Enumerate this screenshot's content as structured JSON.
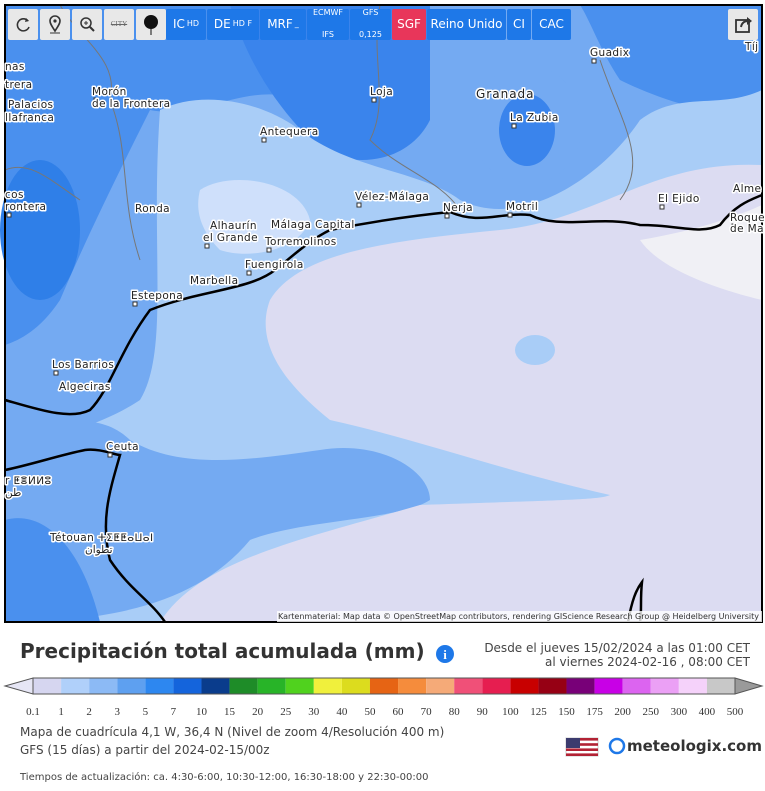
{
  "toolbar": {
    "buttons": [
      {
        "label": "CITY"
      },
      {
        "label": "IC",
        "sub": "HD"
      },
      {
        "label": "DE",
        "sub": "HD F"
      },
      {
        "label": "MRF",
        "sub": "_"
      },
      {
        "label": "ECMWF",
        "sub": "IFS"
      },
      {
        "label": "GFS",
        "sub": "0,125"
      },
      {
        "label": "SGF"
      },
      {
        "label": "Reino Unido"
      },
      {
        "label": "CI"
      },
      {
        "label": "CAC"
      }
    ]
  },
  "map": {
    "places": [
      {
        "label": "nas"
      },
      {
        "label": "trera"
      },
      {
        "label": "Palacios"
      },
      {
        "label": "llafranca"
      },
      {
        "label": "Morón"
      },
      {
        "label": "de la Frontera"
      },
      {
        "label": "Loja"
      },
      {
        "label": "Granada"
      },
      {
        "label": "La Zubia"
      },
      {
        "label": "Guadix"
      },
      {
        "label": "Tíj"
      },
      {
        "label": "Antequera"
      },
      {
        "label": "cos"
      },
      {
        "label": "rontera"
      },
      {
        "label": "Ronda"
      },
      {
        "label": "Alhaurín"
      },
      {
        "label": "el Grande"
      },
      {
        "label": "Málaga Capital"
      },
      {
        "label": "Torremolinos"
      },
      {
        "label": "Vélez-Málaga"
      },
      {
        "label": "Nerja"
      },
      {
        "label": "Motril"
      },
      {
        "label": "El Ejido"
      },
      {
        "label": "Alme"
      },
      {
        "label": "Roque"
      },
      {
        "label": "de Ma"
      },
      {
        "label": "Fuengirola"
      },
      {
        "label": "Marbella"
      },
      {
        "label": "Estepona"
      },
      {
        "label": "Los Barrios"
      },
      {
        "label": "Algeciras"
      },
      {
        "label": "Ceuta"
      },
      {
        "label": "r ⵟⴻⵍⵍⵓ"
      },
      {
        "label": "طن"
      },
      {
        "label": "Tétouan ⵜⵉⵟⵟⴰⵡⴰⵏ"
      },
      {
        "label": "تطوان"
      }
    ],
    "attribution": "Kartenmaterial: Map data © OpenStreetMap contributors, rendering GIScience Research Group @ Heidelberg University"
  },
  "legend": {
    "title": "Precipitación total acumulada (mm)",
    "period": [
      "Desde el jueves 15/02/2024 a  las 01:00 CET",
      "al viernes 2024-02-16 , 08:00 CET"
    ],
    "scale": [
      0.1,
      1,
      2,
      3,
      5,
      7,
      10,
      15,
      20,
      25,
      30,
      40,
      50,
      60,
      70,
      80,
      90,
      100,
      125,
      150,
      175,
      200,
      250,
      300,
      400,
      500
    ],
    "colors": [
      "#d6d6f0",
      "#b0d0fa",
      "#8cbaf5",
      "#5ea0f0",
      "#2d87f0",
      "#1464dc",
      "#0a3c8c",
      "#1e8c28",
      "#28b428",
      "#50d21e",
      "#f0f03c",
      "#dcdc1e",
      "#e66414",
      "#f58c3c",
      "#f5aa78",
      "#f05078",
      "#e61e50",
      "#c80000",
      "#960014",
      "#780078",
      "#c800e6",
      "#dc64f0",
      "#eba0f5",
      "#f5d2fa",
      "#c8c8c8"
    ],
    "under_color": "#e6e6f5",
    "over_color": "#9a9a9a",
    "details": [
      "Mapa de cuadrícula 4,1 W, 36,4 N (Nivel de zoom 4/Resolución 400 m)",
      "GFS (15 días) a partir del 2024-02-15/00z"
    ],
    "brand": "meteologix.com",
    "update": "Tiempos de actualización: ca. 4:30-6:00, 10:30-12:00, 16:30-18:00 y 22:30-00:00"
  }
}
